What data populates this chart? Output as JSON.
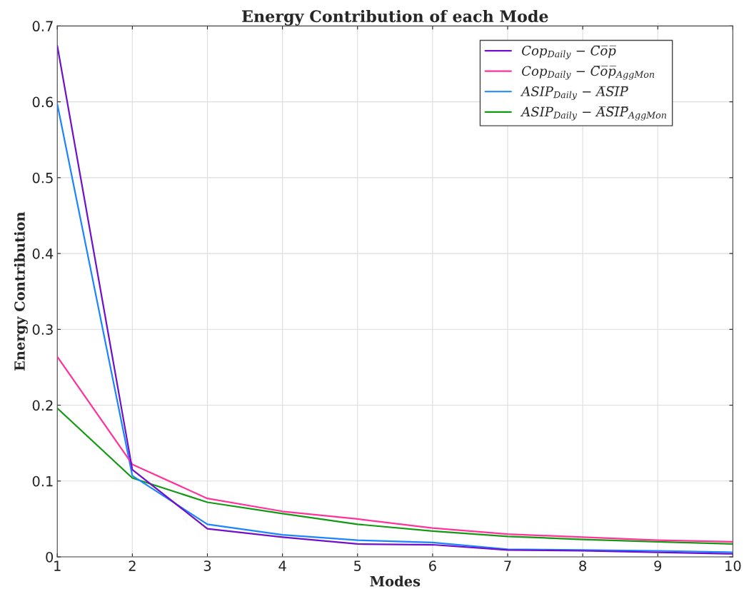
{
  "chart_data": {
    "type": "line",
    "title": "Energy Contribution of each Mode",
    "xlabel": "Modes",
    "ylabel": "Energy Contribution",
    "x": [
      1,
      2,
      3,
      4,
      5,
      6,
      7,
      8,
      9,
      10
    ],
    "series": [
      {
        "name": "Cop$_{Daily}$ − C̅o̅p̅",
        "color": "#7110cc",
        "values": [
          0.674,
          0.115,
          0.037,
          0.026,
          0.017,
          0.016,
          0.009,
          0.008,
          0.006,
          0.004
        ]
      },
      {
        "name": "Cop$_{Daily}$ − C̅o̅p̅$_{AggMon}$",
        "color": "#ff3399",
        "values": [
          0.264,
          0.122,
          0.077,
          0.06,
          0.05,
          0.038,
          0.03,
          0.026,
          0.022,
          0.02
        ]
      },
      {
        "name": "ASIP$_{Daily}$ − A̅S̅I̅P̅",
        "color": "#1a85ff",
        "values": [
          0.597,
          0.107,
          0.043,
          0.029,
          0.022,
          0.019,
          0.01,
          0.009,
          0.008,
          0.006
        ]
      },
      {
        "name": "ASIP$_{Daily}$ − A̅S̅I̅P̅$_{AggMon}$",
        "color": "#139913",
        "values": [
          0.196,
          0.104,
          0.072,
          0.057,
          0.043,
          0.034,
          0.027,
          0.023,
          0.02,
          0.017
        ]
      }
    ],
    "xlim": [
      1,
      10
    ],
    "xticks": [
      1,
      2,
      3,
      4,
      5,
      6,
      7,
      8,
      9,
      10
    ],
    "ylim": [
      0,
      0.7
    ],
    "yticks": [
      0,
      0.1,
      0.2,
      0.3,
      0.4,
      0.5,
      0.6,
      0.7
    ],
    "grid": true,
    "legend": "top right",
    "marker": "none",
    "line_style": "solid"
  }
}
